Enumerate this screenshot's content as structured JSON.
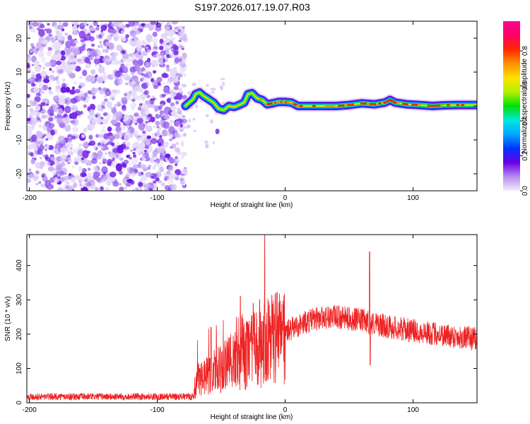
{
  "title": "S197.2026.017.19.07.R03",
  "chart_data": [
    {
      "type": "heatmap",
      "xlabel": "Height of straight line (km)",
      "ylabel": "Frequency (Hz)",
      "xlim": [
        -202,
        150
      ],
      "ylim": [
        -25,
        25
      ],
      "x_ticks": [
        -200,
        -100,
        0,
        100
      ],
      "y_ticks": [
        -20,
        -10,
        0,
        10,
        20
      ],
      "noise_region_x": [
        -202,
        -78
      ],
      "ridge_points": [
        [
          -78,
          0.0
        ],
        [
          -75,
          1.0
        ],
        [
          -72,
          2.0
        ],
        [
          -70,
          3.5
        ],
        [
          -67,
          4.0
        ],
        [
          -64,
          3.0
        ],
        [
          -60,
          2.0
        ],
        [
          -56,
          1.0
        ],
        [
          -52,
          -0.8
        ],
        [
          -48,
          -1.2
        ],
        [
          -44,
          0.0
        ],
        [
          -40,
          -0.3
        ],
        [
          -36,
          0.3
        ],
        [
          -32,
          1.0
        ],
        [
          -29,
          3.5
        ],
        [
          -26,
          3.8
        ],
        [
          -22,
          2.3
        ],
        [
          -18,
          1.8
        ],
        [
          -14,
          0.5
        ],
        [
          -10,
          0.8
        ],
        [
          -5,
          1.2
        ],
        [
          0,
          1.2
        ],
        [
          5,
          1.0
        ],
        [
          10,
          0.0
        ],
        [
          20,
          0.0
        ],
        [
          30,
          0.0
        ],
        [
          40,
          0.0
        ],
        [
          50,
          0.3
        ],
        [
          60,
          0.8
        ],
        [
          70,
          0.5
        ],
        [
          78,
          1.0
        ],
        [
          82,
          1.8
        ],
        [
          86,
          1.0
        ],
        [
          95,
          0.5
        ],
        [
          105,
          0.3
        ],
        [
          115,
          0.0
        ],
        [
          125,
          0.2
        ],
        [
          135,
          0.3
        ],
        [
          150,
          0.3
        ]
      ],
      "colorbar": {
        "label": "Normalized spectral amplitude",
        "ticks": [
          0.0,
          0.2,
          0.4,
          0.6,
          0.8
        ],
        "tick_labels": [
          "0.0",
          "0.2",
          "0.4",
          "0.6",
          "0.8"
        ],
        "range": [
          0.0,
          0.97
        ],
        "colors": [
          "#f2f0fc",
          "#b98af0",
          "#6a00e8",
          "#0033ff",
          "#00a8ff",
          "#00e8e0",
          "#00e000",
          "#b4f000",
          "#ffe000",
          "#ff9000",
          "#ff2800",
          "#ff0064",
          "#ff0090"
        ]
      }
    },
    {
      "type": "line",
      "color": "#ee2222",
      "xlabel": "Height of straight line (km)",
      "ylabel": "SNR (10 * v/v)",
      "xlim": [
        -202,
        150
      ],
      "ylim": [
        0,
        490
      ],
      "x_ticks": [
        -200,
        -100,
        0,
        100
      ],
      "y_ticks": [
        0,
        100,
        200,
        300,
        400
      ],
      "envelope": [
        [
          -202,
          18
        ],
        [
          -150,
          18
        ],
        [
          -100,
          18
        ],
        [
          -72,
          18
        ],
        [
          -68,
          70
        ],
        [
          -60,
          80
        ],
        [
          -50,
          100
        ],
        [
          -40,
          120
        ],
        [
          -30,
          140
        ],
        [
          -20,
          160
        ],
        [
          -10,
          185
        ],
        [
          0,
          205
        ],
        [
          10,
          225
        ],
        [
          20,
          240
        ],
        [
          30,
          250
        ],
        [
          40,
          250
        ],
        [
          50,
          245
        ],
        [
          60,
          240
        ],
        [
          70,
          230
        ],
        [
          80,
          222
        ],
        [
          100,
          210
        ],
        [
          120,
          200
        ],
        [
          140,
          190
        ],
        [
          150,
          185
        ]
      ],
      "spikes": [
        {
          "x": -16,
          "y": 490
        },
        {
          "x": 66,
          "y": 440
        },
        {
          "x": -20,
          "y": 300
        },
        {
          "x": -35,
          "y": 310
        },
        {
          "x": -25,
          "y": 290
        },
        {
          "x": -58,
          "y": 220
        }
      ]
    }
  ]
}
